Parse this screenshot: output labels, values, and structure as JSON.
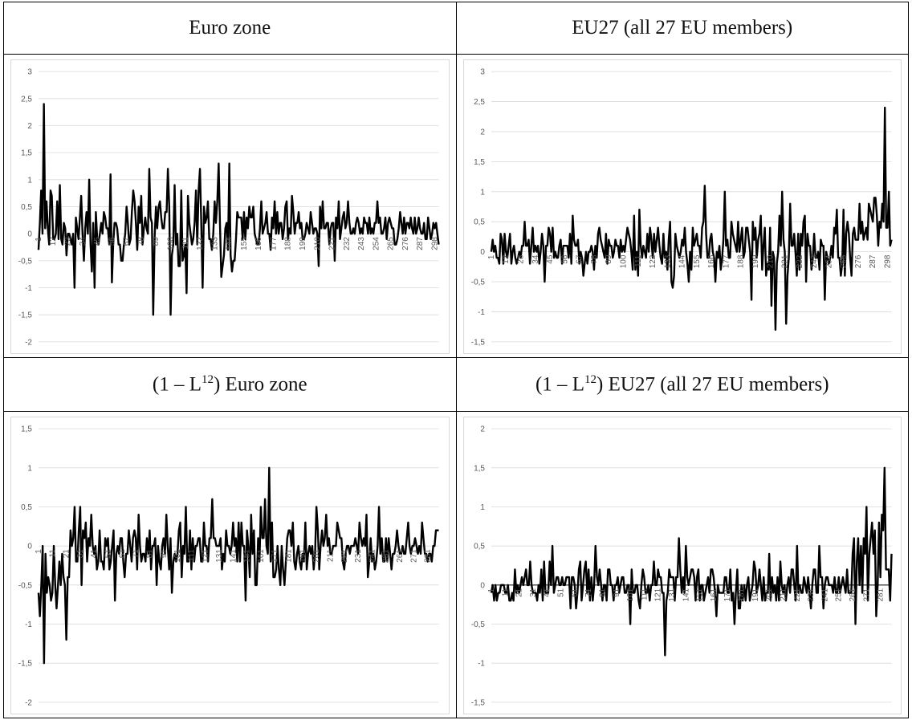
{
  "panels": [
    {
      "title": "Euro zone",
      "chart_data": {
        "type": "line",
        "ylim": [
          -2,
          3
        ],
        "yticks": [
          "-2",
          "-1,5",
          "-1",
          "-0,5",
          "0",
          "0,5",
          "1",
          "1,5",
          "2",
          "2,5",
          "3"
        ],
        "xticks": [
          "1",
          "12",
          "23",
          "34",
          "45",
          "56",
          "67",
          "78",
          "89",
          "100",
          "111",
          "122",
          "133",
          "144",
          "155",
          "166",
          "177",
          "188",
          "199",
          "210",
          "221",
          "232",
          "243",
          "254",
          "265",
          "276",
          "287",
          "298"
        ],
        "n": 301,
        "zero_axis": false,
        "seed": 11,
        "spikes": [
          [
            4,
            2.4
          ],
          [
            2,
            0.8
          ],
          [
            6,
            0.6
          ],
          [
            9,
            0.8
          ],
          [
            16,
            0.9
          ],
          [
            27,
            -1.0
          ],
          [
            34,
            -0.5
          ],
          [
            38,
            1.0
          ],
          [
            42,
            -1.0
          ],
          [
            54,
            1.1
          ],
          [
            55,
            -0.9
          ],
          [
            71,
            0.8
          ],
          [
            83,
            1.2
          ],
          [
            86,
            -1.5
          ],
          [
            97,
            1.2
          ],
          [
            99,
            -1.5
          ],
          [
            106,
            -0.6
          ],
          [
            111,
            -1.1
          ],
          [
            118,
            0.8
          ],
          [
            121,
            1.2
          ],
          [
            123,
            -1.0
          ],
          [
            135,
            1.3
          ],
          [
            137,
            -0.8
          ],
          [
            143,
            1.3
          ],
          [
            145,
            -0.7
          ],
          [
            158,
            0.5
          ],
          [
            167,
            0.6
          ],
          [
            190,
            0.7
          ],
          [
            210,
            -0.6
          ],
          [
            232,
            0.6
          ],
          [
            254,
            0.6
          ]
        ],
        "noise": [
          [
            0,
            60,
            0.45
          ],
          [
            60,
            150,
            0.55
          ],
          [
            150,
            230,
            0.38
          ],
          [
            230,
            301,
            0.22
          ]
        ],
        "bias": [
          [
            0,
            150,
            0.1
          ],
          [
            150,
            230,
            0.08
          ],
          [
            230,
            301,
            0.12
          ]
        ]
      }
    },
    {
      "title": "EU27 (all 27 EU members)",
      "chart_data": {
        "type": "line",
        "ylim": [
          -1.5,
          3
        ],
        "yticks": [
          "-1,5",
          "-1",
          "-0,5",
          "0",
          "0,5",
          "1",
          "1,5",
          "2",
          "2,5",
          "3"
        ],
        "xticks": [
          "1",
          "12",
          "23",
          "34",
          "45",
          "56",
          "67",
          "78",
          "89",
          "100",
          "111",
          "122",
          "133",
          "144",
          "155",
          "166",
          "177",
          "188",
          "199",
          "210",
          "221",
          "232",
          "243",
          "254",
          "265",
          "276",
          "287",
          "298"
        ],
        "n": 301,
        "zero_axis": false,
        "seed": 23,
        "spikes": [
          [
            1,
            0.2
          ],
          [
            40,
            -0.5
          ],
          [
            111,
            0.7
          ],
          [
            136,
            -0.6
          ],
          [
            160,
            1.1
          ],
          [
            175,
            1.0
          ],
          [
            195,
            -0.8
          ],
          [
            210,
            -0.9
          ],
          [
            213,
            -1.3
          ],
          [
            218,
            1.0
          ],
          [
            221,
            -1.2
          ],
          [
            250,
            -0.8
          ],
          [
            276,
            0.8
          ],
          [
            287,
            0.9
          ],
          [
            295,
            2.4
          ],
          [
            298,
            1.0
          ],
          [
            300,
            0.2
          ]
        ],
        "noise": [
          [
            0,
            100,
            0.28
          ],
          [
            100,
            200,
            0.4
          ],
          [
            200,
            280,
            0.45
          ],
          [
            280,
            301,
            0.35
          ]
        ],
        "bias": [
          [
            0,
            280,
            0.08
          ],
          [
            280,
            301,
            0.5
          ]
        ]
      }
    },
    {
      "title_prefix": "(1 – L",
      "title_sup": "12",
      "title_suffix": ") Euro zone",
      "chart_data": {
        "type": "line",
        "ylim": [
          -2,
          1.5
        ],
        "yticks": [
          "-2",
          "-1,5",
          "-1",
          "-0,5",
          "0",
          "0,5",
          "1",
          "1,5"
        ],
        "xticks": [
          "1",
          "11",
          "21",
          "31",
          "41",
          "51",
          "61",
          "71",
          "81",
          "91",
          "101",
          "111",
          "121",
          "131",
          "141",
          "151",
          "161",
          "171",
          "181",
          "191",
          "201",
          "211",
          "221",
          "231",
          "241",
          "251",
          "261",
          "271",
          "281"
        ],
        "n": 289,
        "zero_axis": false,
        "seed": 37,
        "spikes": [
          [
            4,
            -1.5
          ],
          [
            3,
            0.0
          ],
          [
            9,
            -0.7
          ],
          [
            13,
            -0.8
          ],
          [
            20,
            -1.2
          ],
          [
            26,
            0.5
          ],
          [
            30,
            0.5
          ],
          [
            55,
            -0.7
          ],
          [
            80,
            0.2
          ],
          [
            96,
            -0.6
          ],
          [
            106,
            0.5
          ],
          [
            125,
            0.6
          ],
          [
            149,
            -0.7
          ],
          [
            153,
            0.4
          ],
          [
            160,
            0.5
          ],
          [
            163,
            0.6
          ],
          [
            166,
            1.0
          ],
          [
            168,
            0.3
          ],
          [
            177,
            -0.5
          ],
          [
            200,
            0.5
          ],
          [
            245,
            0.5
          ],
          [
            288,
            0.2
          ]
        ],
        "noise": [
          [
            0,
            24,
            0.35
          ],
          [
            24,
            140,
            0.3
          ],
          [
            140,
            180,
            0.35
          ],
          [
            180,
            289,
            0.25
          ]
        ],
        "bias": [
          [
            0,
            24,
            -0.35
          ],
          [
            24,
            289,
            -0.05
          ]
        ]
      }
    },
    {
      "title_prefix": "(1 – L",
      "title_sup": "12",
      "title_suffix": ") EU27 (all 27 EU members)",
      "chart_data": {
        "type": "line",
        "ylim": [
          -1.5,
          2
        ],
        "yticks": [
          "-1,5",
          "-1",
          "-0,5",
          "0",
          "0,5",
          "1",
          "1,5",
          "2"
        ],
        "xticks": [
          "1",
          "11",
          "21",
          "31",
          "41",
          "51",
          "61",
          "71",
          "81",
          "91",
          "101",
          "111",
          "121",
          "131",
          "141",
          "151",
          "161",
          "171",
          "181",
          "191",
          "201",
          "211",
          "221",
          "231",
          "241",
          "251",
          "261",
          "271",
          "281"
        ],
        "n": 289,
        "zero_axis": true,
        "seed": 53,
        "spikes": [
          [
            0,
            -0.1
          ],
          [
            28,
            0.3
          ],
          [
            44,
            0.5
          ],
          [
            75,
            0.5
          ],
          [
            100,
            -0.5
          ],
          [
            125,
            -0.9
          ],
          [
            135,
            0.6
          ],
          [
            140,
            0.5
          ],
          [
            162,
            -0.4
          ],
          [
            175,
            -0.5
          ],
          [
            200,
            0.4
          ],
          [
            220,
            0.5
          ],
          [
            236,
            0.5
          ],
          [
            262,
            -0.5
          ],
          [
            270,
            1.0
          ],
          [
            276,
            0.7
          ],
          [
            279,
            0.8
          ],
          [
            283,
            1.5
          ],
          [
            286,
            0.2
          ],
          [
            288,
            0.4
          ]
        ],
        "noise": [
          [
            0,
            260,
            0.2
          ],
          [
            260,
            289,
            0.45
          ]
        ],
        "bias": [
          [
            0,
            260,
            0.0
          ],
          [
            260,
            289,
            0.3
          ]
        ]
      }
    }
  ]
}
